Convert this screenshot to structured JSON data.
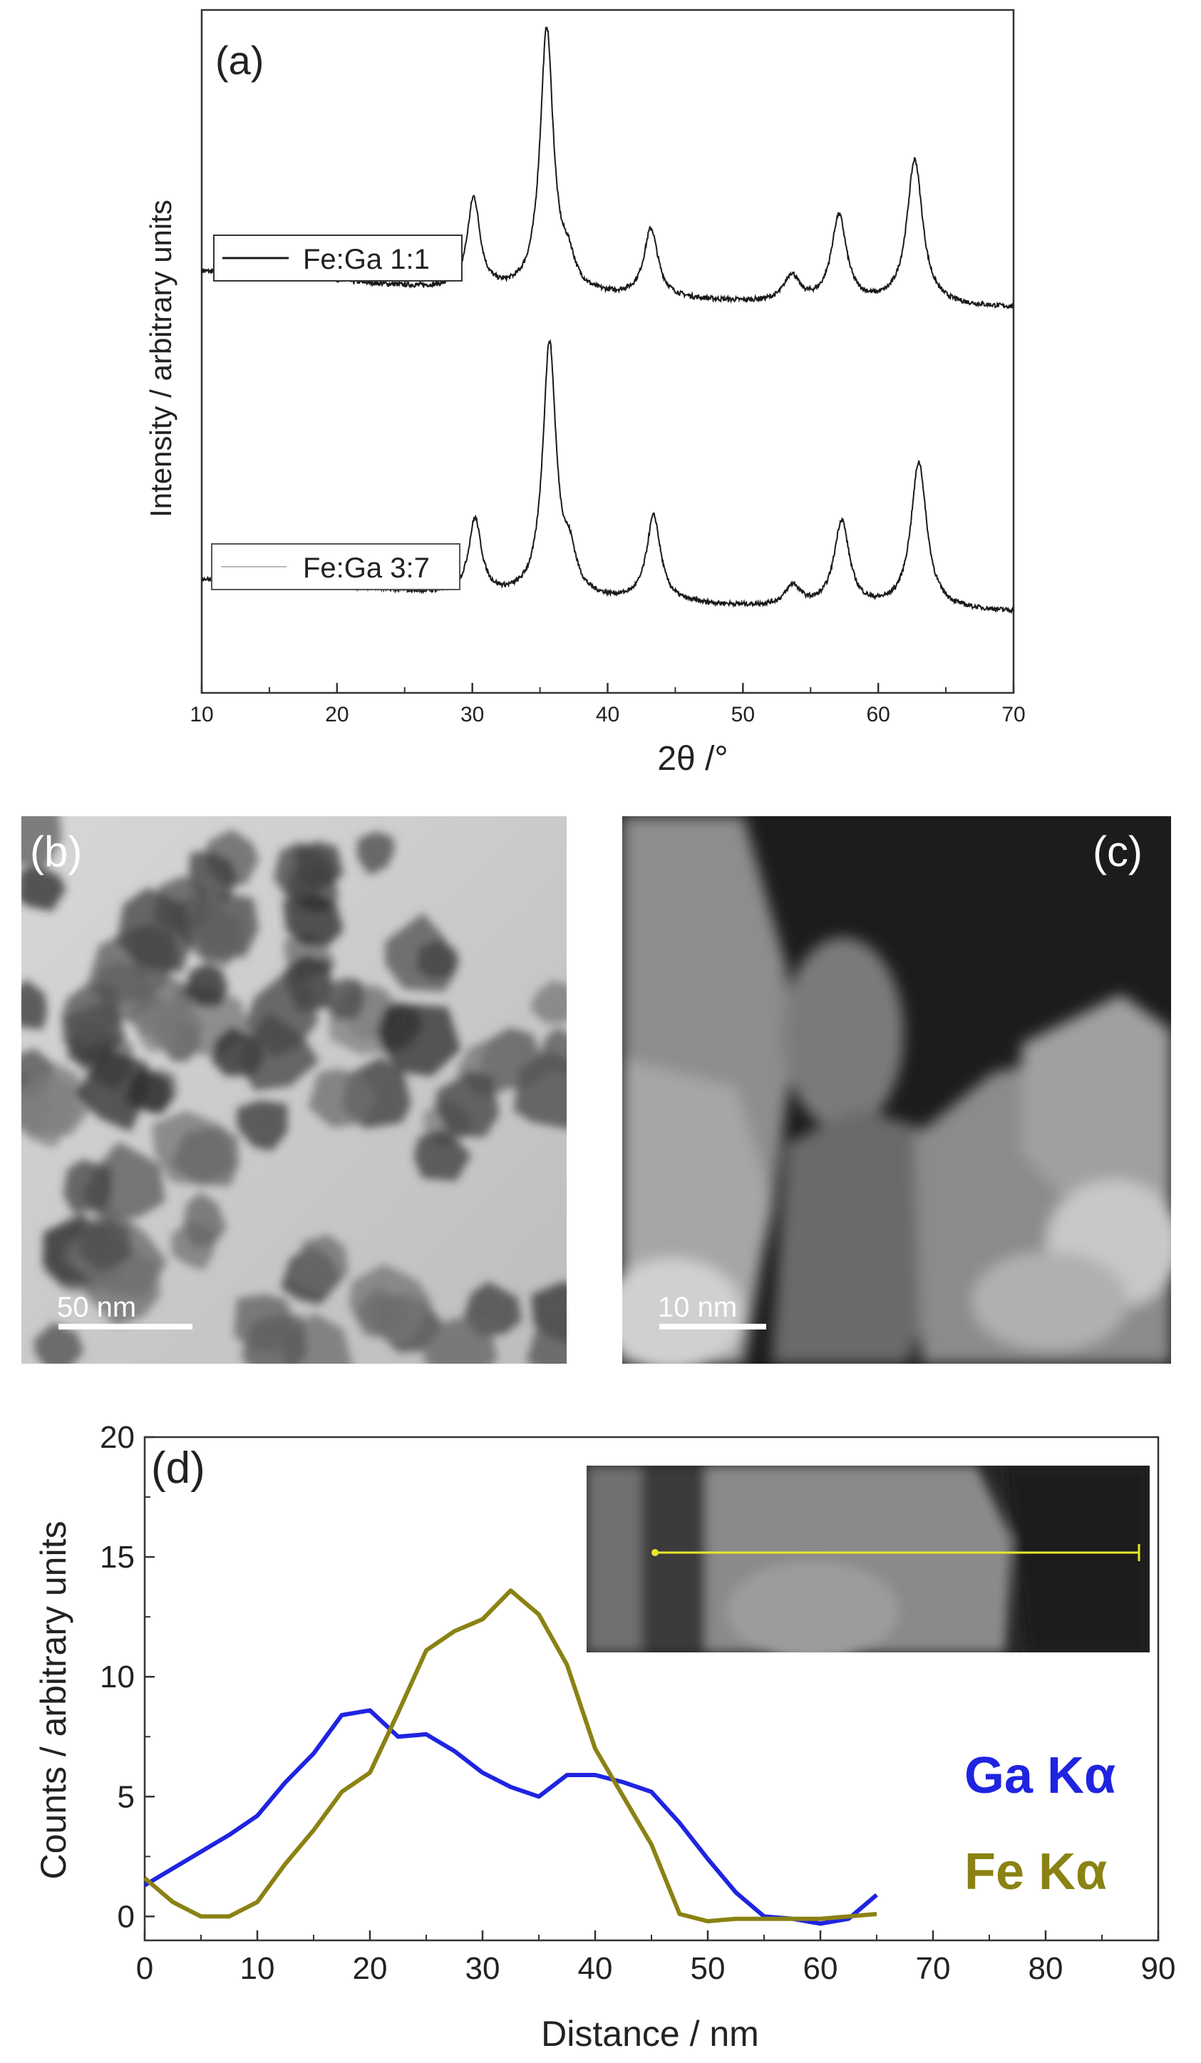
{
  "panel_a": {
    "label": "(a)",
    "ylabel": "Intensity / arbitrary units",
    "xlabel": "2θ /°",
    "legend_top": "Fe:Ga 1:1",
    "legend_bottom": "Fe:Ga 3:7",
    "colors": {
      "top": "#1a1a1a",
      "bottom": "#1a1a1a"
    }
  },
  "panel_b": {
    "label": "(b)",
    "scalebar": "50 nm"
  },
  "panel_c": {
    "label": "(c)",
    "scalebar": "10 nm"
  },
  "panel_d": {
    "label": "(d)",
    "ylabel": "Counts / arbitrary units",
    "xlabel": "Distance / nm",
    "legend_ga": "Ga Kα",
    "legend_fe": "Fe Kα",
    "colors": {
      "ga": "#1f24e0",
      "fe": "#8a8213"
    }
  },
  "chart_data": [
    {
      "type": "line",
      "panel": "(a)",
      "xlabel": "2θ /°",
      "ylabel": "Intensity / arbitrary units",
      "xlim": [
        10,
        70
      ],
      "x_ticks": [
        10,
        20,
        30,
        40,
        50,
        60,
        70
      ],
      "y_ticks_labeled": false,
      "series": [
        {
          "name": "Fe:Ga 1:1",
          "baseline": [
            [
              10,
              0.34
            ],
            [
              20,
              0.3
            ],
            [
              30,
              0.26
            ],
            [
              40,
              0.24
            ],
            [
              50,
              0.22
            ],
            [
              60,
              0.21
            ],
            [
              70,
              0.2
            ]
          ],
          "peaks": [
            [
              18.3,
              0.06
            ],
            [
              30.1,
              0.35
            ],
            [
              35.5,
              1.0
            ],
            [
              37.1,
              0.1
            ],
            [
              43.2,
              0.26
            ],
            [
              53.6,
              0.1
            ],
            [
              57.1,
              0.33
            ],
            [
              62.7,
              0.55
            ]
          ]
        },
        {
          "name": "Fe:Ga 3:7",
          "baseline": [
            [
              10,
              0.34
            ],
            [
              20,
              0.31
            ],
            [
              30,
              0.27
            ],
            [
              40,
              0.25
            ],
            [
              50,
              0.23
            ],
            [
              60,
              0.22
            ],
            [
              70,
              0.21
            ]
          ],
          "peaks": [
            [
              18.3,
              0.06
            ],
            [
              30.2,
              0.3
            ],
            [
              35.7,
              1.0
            ],
            [
              37.2,
              0.14
            ],
            [
              43.4,
              0.34
            ],
            [
              53.7,
              0.08
            ],
            [
              57.3,
              0.34
            ],
            [
              63.0,
              0.58
            ]
          ]
        }
      ]
    },
    {
      "type": "line",
      "panel": "(d)",
      "xlabel": "Distance / nm",
      "ylabel": "Counts / arbitrary units",
      "xlim": [
        0,
        90
      ],
      "ylim": [
        -1,
        20
      ],
      "x_ticks": [
        0,
        10,
        20,
        30,
        40,
        50,
        60,
        70,
        80,
        90
      ],
      "y_ticks": [
        0,
        5,
        10,
        15,
        20
      ],
      "series": [
        {
          "name": "Ga Kα",
          "x": [
            0,
            2.5,
            5,
            7.5,
            10,
            12.5,
            15,
            17.5,
            20,
            22.5,
            25,
            27.5,
            30,
            32.5,
            35,
            37.5,
            40,
            42.5,
            45,
            47.5,
            50,
            52.5,
            55,
            57.5,
            60,
            62.5,
            65
          ],
          "y": [
            1.3,
            2.0,
            2.7,
            3.4,
            4.2,
            5.6,
            6.8,
            8.4,
            8.6,
            7.5,
            7.6,
            6.9,
            6.0,
            5.4,
            5.0,
            5.9,
            5.9,
            5.6,
            5.2,
            3.9,
            2.4,
            1.0,
            0.0,
            -0.1,
            -0.3,
            -0.1,
            0.9
          ]
        },
        {
          "name": "Fe Kα",
          "x": [
            0,
            2.5,
            5,
            7.5,
            10,
            12.5,
            15,
            17.5,
            20,
            22.5,
            25,
            27.5,
            30,
            32.5,
            35,
            37.5,
            40,
            42.5,
            45,
            47.5,
            50,
            52.5,
            55,
            57.5,
            60,
            62.5,
            65
          ],
          "y": [
            1.6,
            0.6,
            0.0,
            0.0,
            0.6,
            2.2,
            3.6,
            5.2,
            6.0,
            8.5,
            11.1,
            11.9,
            12.4,
            13.6,
            12.6,
            10.5,
            7.0,
            5.0,
            3.0,
            0.1,
            -0.2,
            -0.1,
            -0.1,
            -0.1,
            -0.1,
            0.0,
            0.1
          ]
        }
      ]
    }
  ]
}
